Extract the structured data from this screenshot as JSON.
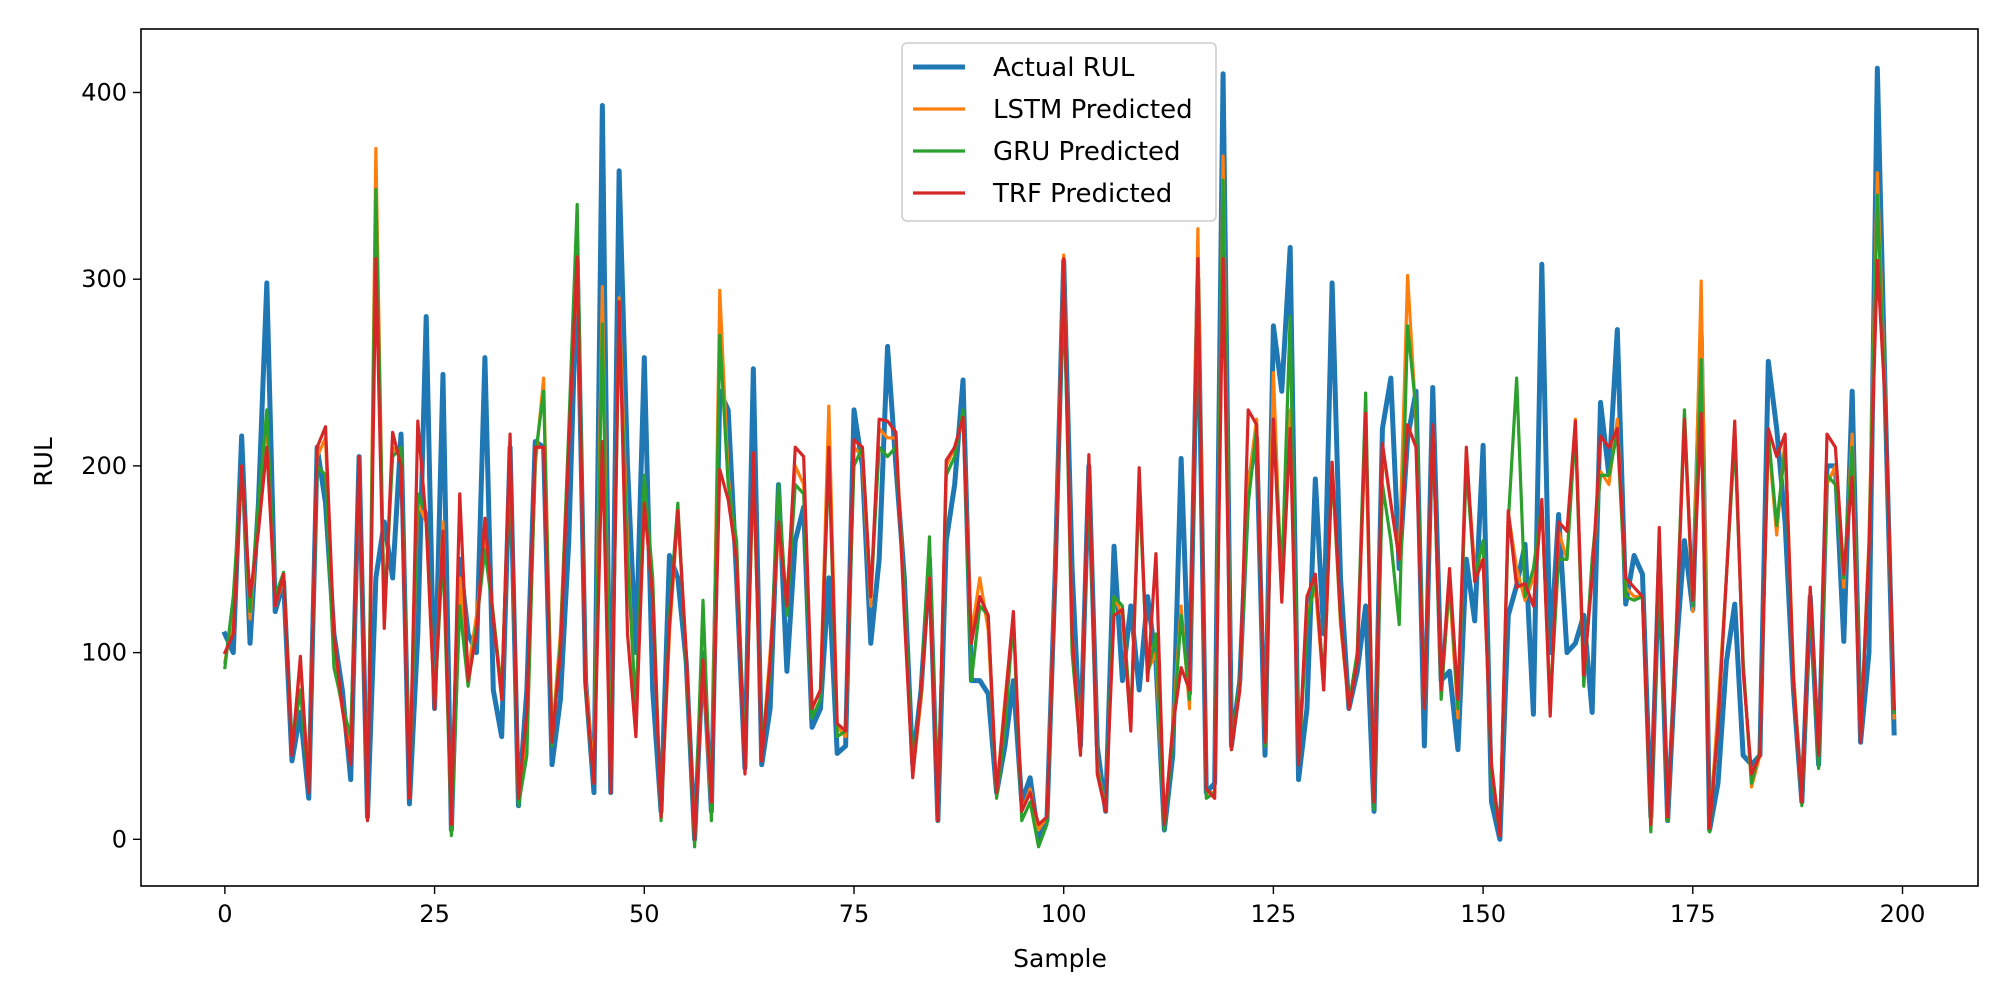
{
  "chart_data": {
    "type": "line",
    "xlabel": "Sample",
    "ylabel": "RUL",
    "xlim": [
      -10,
      209
    ],
    "ylim": [
      -25,
      434
    ],
    "xticks": [
      0,
      25,
      50,
      75,
      100,
      125,
      150,
      175,
      200
    ],
    "yticks": [
      0,
      100,
      200,
      300,
      400
    ],
    "legend_position": "top-center",
    "grid": false,
    "x": [
      0,
      1,
      2,
      3,
      4,
      5,
      6,
      7,
      8,
      9,
      10,
      11,
      12,
      13,
      14,
      15,
      16,
      17,
      18,
      19,
      20,
      21,
      22,
      23,
      24,
      25,
      26,
      27,
      28,
      29,
      30,
      31,
      32,
      33,
      34,
      35,
      36,
      37,
      38,
      39,
      40,
      41,
      42,
      43,
      44,
      45,
      46,
      47,
      48,
      49,
      50,
      51,
      52,
      53,
      54,
      55,
      56,
      57,
      58,
      59,
      60,
      61,
      62,
      63,
      64,
      65,
      66,
      67,
      68,
      69,
      70,
      71,
      72,
      73,
      74,
      75,
      76,
      77,
      78,
      79,
      80,
      81,
      82,
      83,
      84,
      85,
      86,
      87,
      88,
      89,
      90,
      91,
      92,
      93,
      94,
      95,
      96,
      97,
      98,
      99,
      100,
      101,
      102,
      103,
      104,
      105,
      106,
      107,
      108,
      109,
      110,
      111,
      112,
      113,
      114,
      115,
      116,
      117,
      118,
      119,
      120,
      121,
      122,
      123,
      124,
      125,
      126,
      127,
      128,
      129,
      130,
      131,
      132,
      133,
      134,
      135,
      136,
      137,
      138,
      139,
      140,
      141,
      142,
      143,
      144,
      145,
      146,
      147,
      148,
      149,
      150,
      151,
      152,
      153,
      154,
      155,
      156,
      157,
      158,
      159,
      160,
      161,
      162,
      163,
      164,
      165,
      166,
      167,
      168,
      169,
      170,
      171,
      172,
      173,
      174,
      175,
      176,
      177,
      178,
      179,
      180,
      181,
      182,
      183,
      184,
      185,
      186,
      187,
      188,
      189,
      190,
      191,
      192,
      193,
      194,
      195,
      196,
      197,
      198,
      199
    ],
    "series": [
      {
        "name": "Actual RUL",
        "color": "#1f77b4",
        "width": 5,
        "values": [
          110,
          100,
          216,
          105,
          180,
          298,
          122,
          138,
          42,
          68,
          22,
          210,
          180,
          110,
          80,
          32,
          205,
          12,
          140,
          170,
          140,
          217,
          19,
          110,
          280,
          70,
          249,
          5,
          150,
          110,
          100,
          258,
          80,
          55,
          210,
          18,
          80,
          213,
          210,
          40,
          75,
          160,
          310,
          85,
          25,
          393,
          25,
          358,
          200,
          100,
          258,
          80,
          15,
          152,
          140,
          95,
          0,
          100,
          15,
          240,
          230,
          140,
          38,
          252,
          40,
          70,
          190,
          90,
          160,
          178,
          60,
          70,
          140,
          46,
          50,
          230,
          200,
          105,
          150,
          264,
          200,
          140,
          40,
          80,
          150,
          10,
          160,
          190,
          246,
          85,
          85,
          78,
          25,
          50,
          85,
          20,
          33,
          0,
          10,
          145,
          310,
          145,
          50,
          200,
          50,
          15,
          157,
          85,
          125,
          80,
          130,
          95,
          5,
          45,
          204,
          78,
          300,
          25,
          30,
          410,
          50,
          85,
          190,
          215,
          45,
          275,
          240,
          317,
          32,
          70,
          193,
          110,
          298,
          140,
          70,
          90,
          125,
          15,
          220,
          247,
          145,
          215,
          240,
          50,
          242,
          85,
          90,
          48,
          150,
          117,
          211,
          20,
          0,
          120,
          136,
          158,
          67,
          308,
          100,
          174,
          100,
          105,
          120,
          68,
          234,
          195,
          273,
          126,
          152,
          142,
          12,
          150,
          10,
          100,
          160,
          123,
          270,
          5,
          30,
          95,
          126,
          45,
          40,
          45,
          256,
          220,
          170,
          80,
          20,
          130,
          40,
          200,
          200,
          106,
          240,
          52,
          100,
          413,
          225,
          57
        ]
      },
      {
        "name": "LSTM Predicted",
        "color": "#ff7f0e",
        "width": 3.2,
        "values": [
          95,
          120,
          200,
          118,
          175,
          225,
          125,
          140,
          48,
          95,
          30,
          205,
          215,
          95,
          70,
          45,
          200,
          12,
          370,
          115,
          210,
          205,
          28,
          180,
          170,
          70,
          170,
          5,
          140,
          90,
          120,
          160,
          120,
          80,
          210,
          20,
          55,
          200,
          247,
          55,
          110,
          215,
          310,
          85,
          35,
          296,
          30,
          290,
          160,
          60,
          180,
          130,
          12,
          110,
          175,
          100,
          0,
          95,
          15,
          294,
          195,
          150,
          40,
          200,
          45,
          100,
          165,
          130,
          200,
          190,
          70,
          80,
          232,
          60,
          55,
          210,
          205,
          125,
          220,
          215,
          215,
          130,
          35,
          75,
          155,
          10,
          200,
          210,
          225,
          110,
          140,
          112,
          25,
          75,
          120,
          15,
          27,
          5,
          12,
          145,
          313,
          110,
          50,
          200,
          40,
          15,
          130,
          120,
          60,
          190,
          90,
          100,
          8,
          60,
          125,
          70,
          327,
          25,
          25,
          366,
          50,
          80,
          190,
          225,
          50,
          250,
          130,
          230,
          45,
          120,
          135,
          80,
          200,
          115,
          70,
          100,
          220,
          20,
          210,
          180,
          150,
          302,
          225,
          70,
          220,
          80,
          135,
          65,
          205,
          145,
          150,
          40,
          3,
          175,
          145,
          128,
          140,
          180,
          70,
          165,
          150,
          225,
          85,
          145,
          197,
          190,
          225,
          135,
          130,
          130,
          5,
          165,
          10,
          110,
          225,
          122,
          299,
          5,
          70,
          140,
          220,
          95,
          28,
          45,
          215,
          163,
          215,
          90,
          20,
          130,
          48,
          190,
          200,
          135,
          217,
          53,
          160,
          357,
          228,
          65
        ]
      },
      {
        "name": "GRU Predicted",
        "color": "#2ca02c",
        "width": 3.2,
        "values": [
          92,
          130,
          200,
          122,
          180,
          230,
          130,
          143,
          50,
          80,
          28,
          200,
          195,
          92,
          72,
          55,
          200,
          12,
          348,
          120,
          205,
          210,
          28,
          185,
          175,
          72,
          155,
          2,
          125,
          82,
          115,
          155,
          120,
          78,
          210,
          18,
          45,
          205,
          240,
          50,
          105,
          220,
          340,
          80,
          30,
          276,
          28,
          280,
          150,
          70,
          195,
          140,
          10,
          120,
          180,
          95,
          -4,
          128,
          10,
          270,
          190,
          160,
          38,
          200,
          48,
          90,
          190,
          120,
          190,
          185,
          65,
          75,
          205,
          55,
          58,
          200,
          210,
          130,
          210,
          205,
          210,
          130,
          38,
          78,
          162,
          12,
          195,
          205,
          230,
          85,
          125,
          120,
          22,
          60,
          118,
          10,
          20,
          -4,
          8,
          140,
          305,
          100,
          48,
          195,
          38,
          15,
          130,
          125,
          65,
          190,
          88,
          110,
          5,
          55,
          120,
          75,
          305,
          22,
          25,
          353,
          48,
          85,
          180,
          220,
          50,
          225,
          140,
          280,
          40,
          115,
          140,
          85,
          200,
          118,
          72,
          100,
          239,
          16,
          190,
          160,
          115,
          275,
          230,
          70,
          220,
          75,
          140,
          70,
          200,
          140,
          160,
          35,
          2,
          170,
          247,
          130,
          145,
          180,
          72,
          150,
          150,
          220,
          82,
          150,
          195,
          195,
          218,
          130,
          128,
          130,
          4,
          155,
          10,
          110,
          230,
          125,
          257,
          4,
          60,
          140,
          215,
          95,
          30,
          48,
          218,
          168,
          210,
          85,
          18,
          130,
          38,
          195,
          190,
          140,
          210,
          55,
          155,
          345,
          225,
          68
        ]
      },
      {
        "name": "TRF Predicted",
        "color": "#d62728",
        "width": 3.2,
        "values": [
          100,
          110,
          200,
          130,
          165,
          210,
          125,
          142,
          45,
          98,
          25,
          210,
          221,
          110,
          70,
          40,
          205,
          10,
          311,
          113,
          218,
          200,
          22,
          224,
          170,
          70,
          165,
          8,
          185,
          85,
          110,
          172,
          118,
          75,
          217,
          22,
          68,
          210,
          210,
          52,
          100,
          211,
          312,
          82,
          30,
          213,
          25,
          288,
          110,
          55,
          180,
          130,
          12,
          115,
          176,
          100,
          0,
          96,
          20,
          198,
          182,
          150,
          35,
          207,
          42,
          95,
          170,
          125,
          210,
          205,
          70,
          80,
          210,
          62,
          58,
          214,
          210,
          130,
          225,
          224,
          218,
          120,
          33,
          80,
          140,
          10,
          203,
          210,
          226,
          105,
          130,
          120,
          25,
          72,
          122,
          15,
          25,
          8,
          12,
          140,
          311,
          110,
          45,
          206,
          35,
          15,
          120,
          123,
          58,
          199,
          85,
          153,
          8,
          60,
          92,
          80,
          311,
          27,
          22,
          311,
          48,
          80,
          230,
          222,
          52,
          225,
          127,
          220,
          40,
          130,
          142,
          80,
          202,
          120,
          70,
          95,
          228,
          20,
          212,
          180,
          150,
          222,
          210,
          70,
          222,
          80,
          145,
          75,
          210,
          138,
          150,
          40,
          2,
          176,
          135,
          137,
          125,
          182,
          66,
          170,
          165,
          224,
          88,
          140,
          216,
          210,
          220,
          140,
          135,
          130,
          8,
          167,
          12,
          105,
          225,
          128,
          228,
          6,
          60,
          140,
          224,
          90,
          35,
          45,
          220,
          205,
          217,
          85,
          20,
          135,
          45,
          217,
          210,
          142,
          194,
          52,
          155,
          310,
          228,
          70
        ]
      }
    ]
  }
}
